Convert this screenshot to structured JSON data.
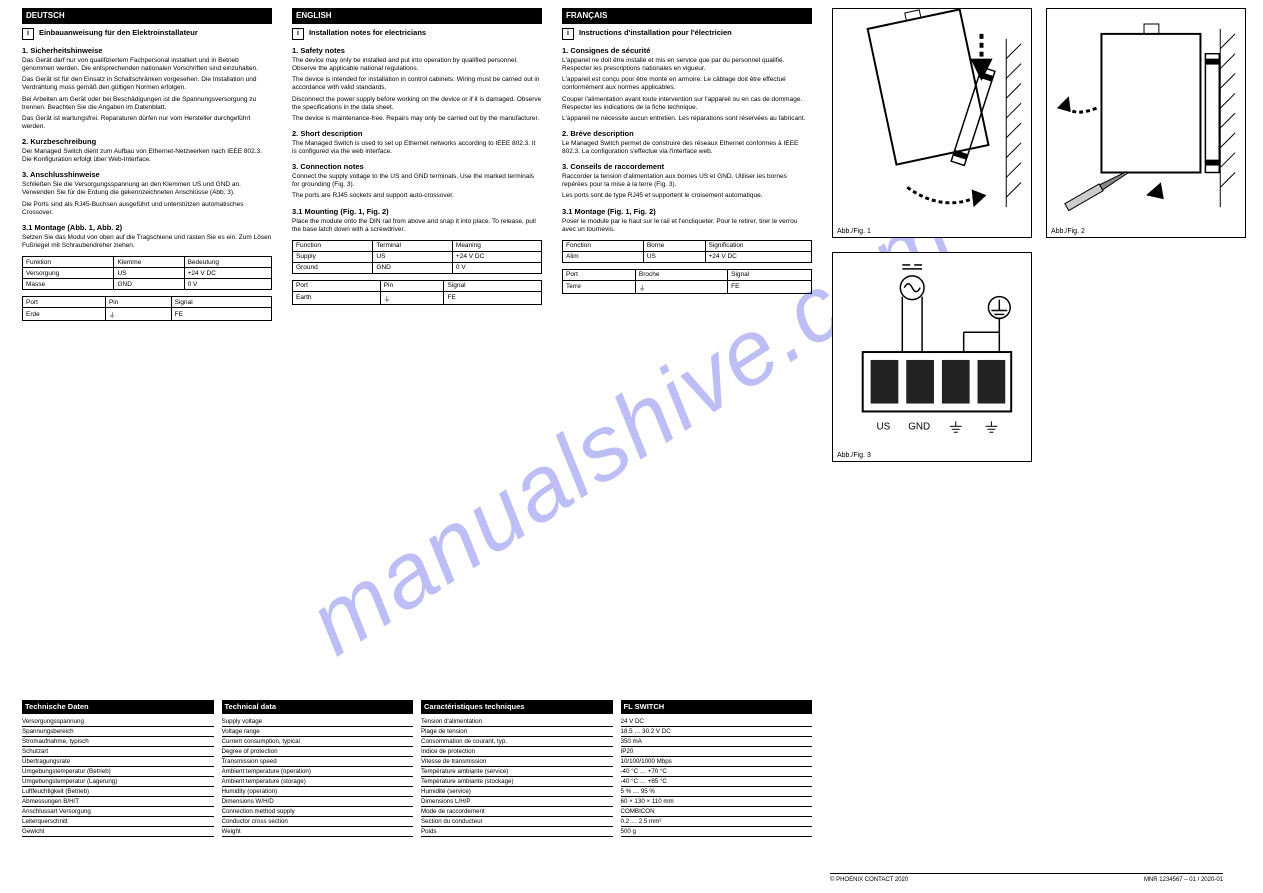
{
  "watermark": "manualshive.com",
  "columns": {
    "de": {
      "title": "DEUTSCH",
      "heading": "Einbauanweisung für den Elektroinstallateur",
      "s1_h": "1. Sicherheitshinweise",
      "s1_p1": "Das Gerät darf nur von qualifiziertem Fachpersonal installiert und in Betrieb genommen werden. Die entsprechenden nationalen Vorschriften sind einzuhalten.",
      "s1_p2": "Das Gerät ist für den Einsatz in Schaltschränken vorgesehen. Die Installation und Verdrahtung muss gemäß den gültigen Normen erfolgen.",
      "s1_p3": "Bei Arbeiten am Gerät oder bei Beschädigungen ist die Spannungsversorgung zu trennen. Beachten Sie die Angaben im Datenblatt.",
      "s1_p4": "Das Gerät ist wartungsfrei. Reparaturen dürfen nur vom Hersteller durchgeführt werden.",
      "s2_h": "2. Kurzbeschreibung",
      "s2_p1": "Der Managed Switch dient zum Aufbau von Ethernet-Netzwerken nach IEEE 802.3. Die Konfiguration erfolgt über Web-Interface.",
      "s3_h": "3. Anschlusshinweise",
      "s3_p1": "Schließen Sie die Versorgungsspannung an den Klemmen US und GND an. Verwenden Sie für die Erdung die gekennzeichneten Anschlüsse (Abb. 3).",
      "s3_p2": "Die Ports sind als RJ45-Buchsen ausgeführt und unterstützen automatisches Crossover.",
      "s4_h": "3.1 Montage (Abb. 1, Abb. 2)",
      "s4_p1": "Setzen Sie das Modul von oben auf die Tragschiene und rasten Sie es ein. Zum Lösen Fußriegel mit Schraubendreher ziehen.",
      "t1": {
        "r1c1": "Funktion",
        "r1c2": "Klemme",
        "r1c3": "Bedeutung",
        "r2c1": "Versorgung",
        "r2c2": "US",
        "r2c3": "+24 V DC",
        "r3c1": "Masse",
        "r3c2": "GND",
        "r3c3": "0 V"
      },
      "t2": {
        "r1c1": "Port",
        "r1c2": "Pin",
        "r1c3": "Signal",
        "r2c1": "Erde",
        "r2c2": "⏚",
        "r2c3": "FE"
      }
    },
    "en": {
      "title": "ENGLISH",
      "heading": "Installation notes for electricians",
      "s1_h": "1. Safety notes",
      "s1_p1": "The device may only be installed and put into operation by qualified personnel. Observe the applicable national regulations.",
      "s1_p2": "The device is intended for installation in control cabinets. Wiring must be carried out in accordance with valid standards.",
      "s1_p3": "Disconnect the power supply before working on the device or if it is damaged. Observe the specifications in the data sheet.",
      "s1_p4": "The device is maintenance-free. Repairs may only be carried out by the manufacturer.",
      "s2_h": "2. Short description",
      "s2_p1": "The Managed Switch is used to set up Ethernet networks according to IEEE 802.3. It is configured via the web interface.",
      "s3_h": "3. Connection notes",
      "s3_p1": "Connect the supply voltage to the US and GND terminals. Use the marked terminals for grounding (Fig. 3).",
      "s3_p2": "The ports are RJ45 sockets and support auto-crossover.",
      "s4_h": "3.1 Mounting (Fig. 1, Fig. 2)",
      "s4_p1": "Place the module onto the DIN rail from above and snap it into place. To release, pull the base latch down with a screwdriver.",
      "t1": {
        "r1c1": "Function",
        "r1c2": "Terminal",
        "r1c3": "Meaning",
        "r2c1": "Supply",
        "r2c2": "US",
        "r2c3": "+24 V DC",
        "r3c1": "Ground",
        "r3c2": "GND",
        "r3c3": "0 V"
      },
      "t2": {
        "r1c1": "Port",
        "r1c2": "Pin",
        "r1c3": "Signal",
        "r2c1": "Earth",
        "r2c2": "⏚",
        "r2c3": "FE"
      }
    },
    "fr": {
      "title": "FRANÇAIS",
      "heading": "Instructions d'installation pour l'électricien",
      "s1_h": "1. Consignes de sécurité",
      "s1_p1": "L'appareil ne doit être installé et mis en service que par du personnel qualifié. Respecter les prescriptions nationales en vigueur.",
      "s1_p2": "L'appareil est conçu pour être monté en armoire. Le câblage doit être effectué conformément aux normes applicables.",
      "s1_p3": "Couper l'alimentation avant toute intervention sur l'appareil ou en cas de dommage. Respecter les indications de la fiche technique.",
      "s1_p4": "L'appareil ne nécessite aucun entretien. Les réparations sont réservées au fabricant.",
      "s2_h": "2. Brève description",
      "s2_p1": "Le Managed Switch permet de construire des réseaux Ethernet conformes à IEEE 802.3. La configuration s'effectue via l'interface web.",
      "s3_h": "3. Conseils de raccordement",
      "s3_p1": "Raccorder la tension d'alimentation aux bornes US et GND. Utiliser les bornes repérées pour la mise à la terre (Fig. 3).",
      "s3_p2": "Les ports sont de type RJ45 et supportent le croisement automatique.",
      "s4_h": "3.1 Montage (Fig. 1, Fig. 2)",
      "s4_p1": "Poser le module par le haut sur le rail et l'encliqueter. Pour le retirer, tirer le verrou avec un tournevis.",
      "t1": {
        "r1c1": "Fonction",
        "r1c2": "Borne",
        "r1c3": "Signification",
        "r2c1": "Alim",
        "r2c2": "US",
        "r2c3": "+24 V DC",
        "r3c1": "Masse",
        "r3c2": "GND",
        "r3c3": "0 V"
      },
      "t2": {
        "r1c1": "Port",
        "r1c2": "Broche",
        "r1c3": "Signal",
        "r2c1": "Terre",
        "r2c2": "⏚",
        "r2c3": "FE"
      }
    }
  },
  "fig1_label": "Abb./Fig. 1",
  "fig2_label": "Abb./Fig. 2",
  "fig3_label": "Abb./Fig. 3",
  "terminals": {
    "t1": "US",
    "t2": "GND",
    "t3": "⏚",
    "t4": "⏚"
  },
  "tech": {
    "headers": {
      "de": "Technische Daten",
      "en": "Technical data",
      "fr": "Caractéristiques techniques",
      "val": "FL SWITCH"
    },
    "rows": [
      {
        "de": "Versorgungsspannung",
        "en": "Supply voltage",
        "fr": "Tension d'alimentation",
        "val": "24 V DC"
      },
      {
        "de": "Spannungsbereich",
        "en": "Voltage range",
        "fr": "Plage de tension",
        "val": "18.5 … 30.2 V DC"
      },
      {
        "de": "Stromaufnahme, typisch",
        "en": "Current consumption, typical",
        "fr": "Consommation de courant, typ.",
        "val": "350 mA"
      },
      {
        "de": "Schutzart",
        "en": "Degree of protection",
        "fr": "Indice de protection",
        "val": "IP20"
      },
      {
        "de": "Übertragungsrate",
        "en": "Transmission speed",
        "fr": "Vitesse de transmission",
        "val": "10/100/1000 Mbps"
      },
      {
        "de": "Umgebungstemperatur (Betrieb)",
        "en": "Ambient temperature (operation)",
        "fr": "Température ambiante (service)",
        "val": "-40 °C … +70 °C"
      },
      {
        "de": "Umgebungstemperatur (Lagerung)",
        "en": "Ambient temperature (storage)",
        "fr": "Température ambiante (stockage)",
        "val": "-40 °C … +85 °C"
      },
      {
        "de": "Luftfeuchtigkeit (Betrieb)",
        "en": "Humidity (operation)",
        "fr": "Humidité (service)",
        "val": "5 % … 95 %"
      },
      {
        "de": "Abmessungen B/H/T",
        "en": "Dimensions W/H/D",
        "fr": "Dimensions L/H/P",
        "val": "60 × 130 × 110 mm"
      },
      {
        "de": "Anschlussart Versorgung",
        "en": "Connection method supply",
        "fr": "Mode de raccordement",
        "val": "COMBICON"
      },
      {
        "de": "Leiterquerschnitt",
        "en": "Conductor cross section",
        "fr": "Section du conducteur",
        "val": "0.2 … 2.5 mm²"
      },
      {
        "de": "Gewicht",
        "en": "Weight",
        "fr": "Poids",
        "val": "500 g"
      }
    ]
  },
  "footer": {
    "left": "© PHOENIX CONTACT 2020",
    "right": "MNR 1234567 – 01 / 2020-01"
  }
}
